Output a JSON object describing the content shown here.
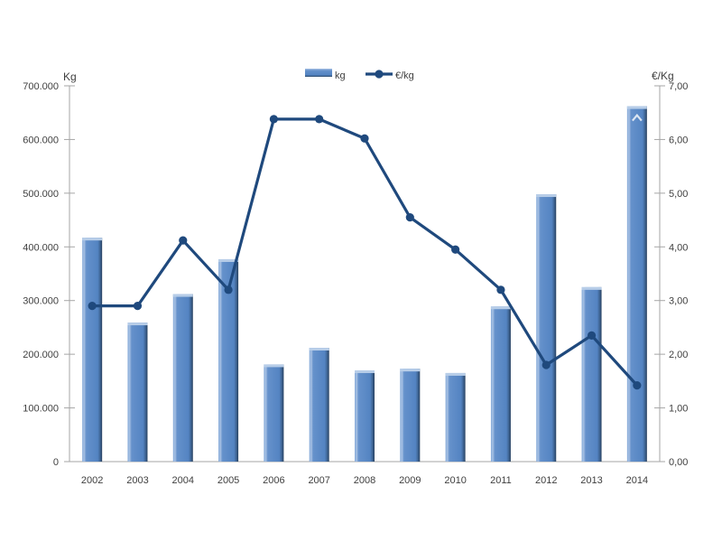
{
  "chart_data": {
    "type": "combo-bar-line",
    "title": "",
    "categories": [
      "2002",
      "2003",
      "2004",
      "2005",
      "2006",
      "2007",
      "2008",
      "2009",
      "2010",
      "2011",
      "2012",
      "2013",
      "2014"
    ],
    "series": [
      {
        "name": "kg",
        "type": "bar",
        "axis": "left",
        "values": [
          417000,
          259000,
          312000,
          377000,
          181000,
          212000,
          170000,
          173000,
          165000,
          289000,
          498000,
          325000,
          662000
        ]
      },
      {
        "name": "€/kg",
        "type": "line",
        "axis": "right",
        "values": [
          2.9,
          2.9,
          4.12,
          3.2,
          6.38,
          6.38,
          6.02,
          4.55,
          3.95,
          3.2,
          1.8,
          2.35,
          1.42
        ]
      }
    ],
    "left_axis": {
      "title": "Kg",
      "min": 0,
      "max": 700000,
      "step": 100000,
      "tick_labels": [
        "0",
        "100.000",
        "200.000",
        "300.000",
        "400.000",
        "500.000",
        "600.000",
        "700.000"
      ]
    },
    "right_axis": {
      "title": "€/Kg",
      "min": 0,
      "max": 7,
      "step": 1,
      "tick_labels": [
        "0,00",
        "1,00",
        "2,00",
        "3,00",
        "4,00",
        "5,00",
        "6,00",
        "7,00"
      ]
    },
    "legend": {
      "position": "top",
      "entries": [
        "kg",
        "€/kg"
      ]
    },
    "grid": false,
    "annotations": {
      "bar_2014_caret": "^"
    },
    "colors": {
      "bar_main": "#5585C2",
      "bar_top_cap": "#B7CDE8",
      "bar_gradient": [
        [
          "0%",
          "#7FA6D7"
        ],
        [
          "9%",
          "#A9C2E4"
        ],
        [
          "20%",
          "#6591CB"
        ],
        [
          "78%",
          "#5484C2"
        ],
        [
          "90%",
          "#3E6493"
        ],
        [
          "100%",
          "#27405E"
        ]
      ],
      "line": "#1F497D",
      "caret": "#DCE6F2",
      "axis": "#A6A6A6",
      "text": "#3F3F3F"
    }
  }
}
